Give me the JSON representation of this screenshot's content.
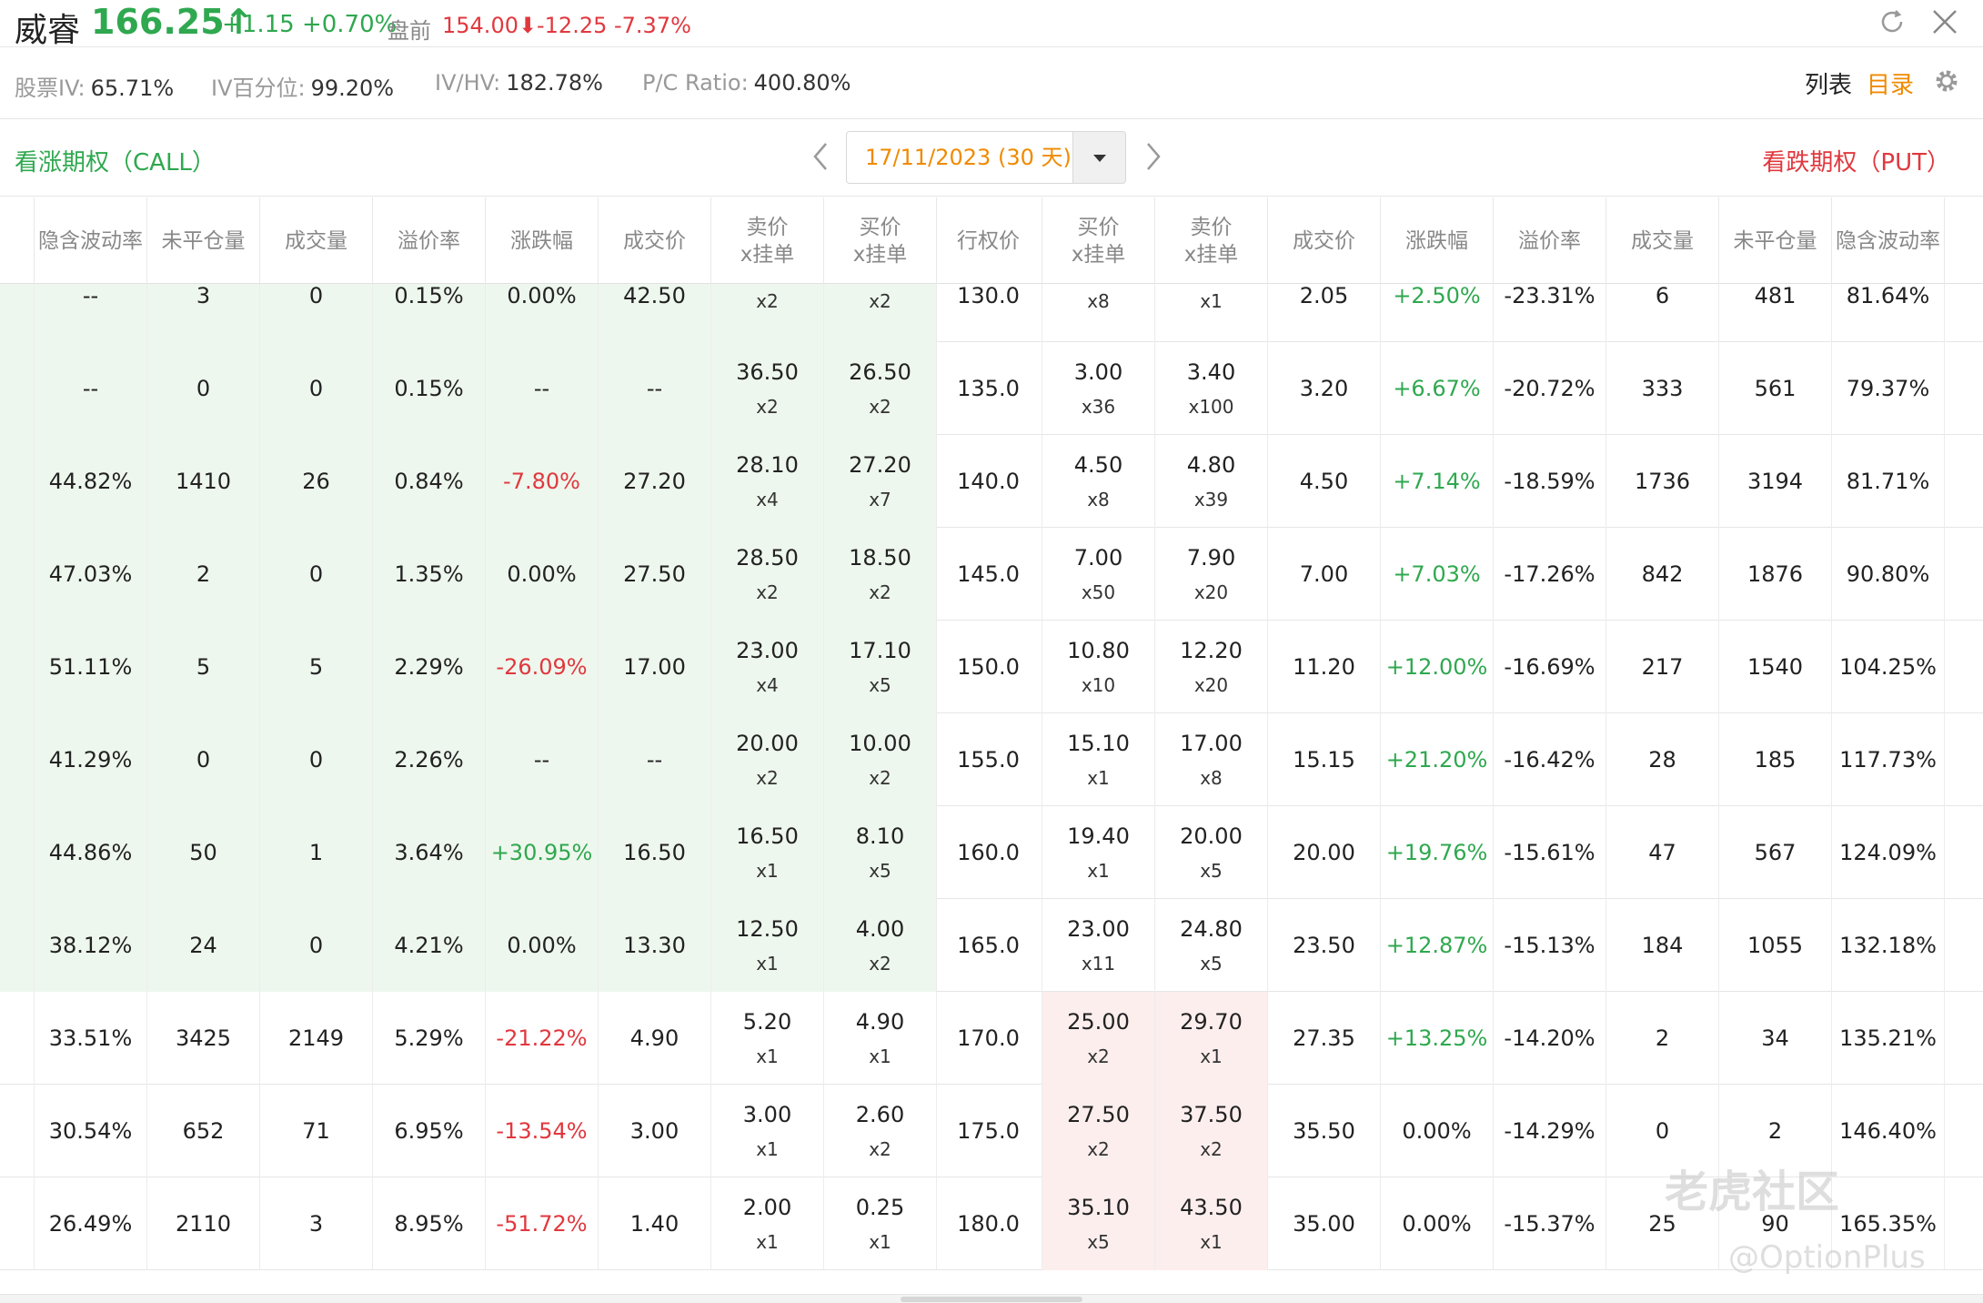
{
  "header": {
    "name": "威睿",
    "price": "166.25↑",
    "change": "+1.15 +0.70%",
    "premarket_label": "盘前",
    "premarket_price": "154.00⬇",
    "premarket_change": "-12.25 -7.37%"
  },
  "stats": [
    {
      "label": "股票IV:",
      "value": "65.71%"
    },
    {
      "label": "IV百分位:",
      "value": "99.20%"
    },
    {
      "label": "IV/HV:",
      "value": "182.78%"
    },
    {
      "label": "P/C Ratio:",
      "value": "400.80%"
    }
  ],
  "toolbar": {
    "list_label": "列表",
    "menu_label": "目录"
  },
  "expiry": {
    "call_label": "看涨期权（CALL）",
    "put_label": "看跌期权（PUT）",
    "date": "17/11/2023 (30 天)"
  },
  "columns": [
    "隐含波动率",
    "未平仓量",
    "成交量",
    "溢价率",
    "涨跌幅",
    "成交价",
    "卖价\nx挂单",
    "买价\nx挂单",
    "行权价",
    "买价\nx挂单",
    "卖价\nx挂单",
    "成交价",
    "涨跌幅",
    "溢价率",
    "成交量",
    "未平仓量",
    "隐含波动率"
  ],
  "rows": [
    [
      "--",
      "3",
      "0",
      "0.15%",
      "0.00%",
      "42.50",
      "",
      "x2",
      "",
      "x2",
      "130.0",
      "",
      "x8",
      "",
      "x1",
      "2.05",
      "+2.50%",
      "-23.31%",
      "6",
      "481",
      "81.64%"
    ],
    [
      "--",
      "0",
      "0",
      "0.15%",
      "--",
      "--",
      "36.50",
      "x2",
      "26.50",
      "x2",
      "135.0",
      "3.00",
      "x36",
      "3.40",
      "x100",
      "3.20",
      "+6.67%",
      "-20.72%",
      "333",
      "561",
      "79.37%"
    ],
    [
      "44.82%",
      "1410",
      "26",
      "0.84%",
      "-7.80%",
      "27.20",
      "28.10",
      "x4",
      "27.20",
      "x7",
      "140.0",
      "4.50",
      "x8",
      "4.80",
      "x39",
      "4.50",
      "+7.14%",
      "-18.59%",
      "1736",
      "3194",
      "81.71%"
    ],
    [
      "47.03%",
      "2",
      "0",
      "1.35%",
      "0.00%",
      "27.50",
      "28.50",
      "x2",
      "18.50",
      "x2",
      "145.0",
      "7.00",
      "x50",
      "7.90",
      "x20",
      "7.00",
      "+7.03%",
      "-17.26%",
      "842",
      "1876",
      "90.80%"
    ],
    [
      "51.11%",
      "5",
      "5",
      "2.29%",
      "-26.09%",
      "17.00",
      "23.00",
      "x4",
      "17.10",
      "x5",
      "150.0",
      "10.80",
      "x10",
      "12.20",
      "x20",
      "11.20",
      "+12.00%",
      "-16.69%",
      "217",
      "1540",
      "104.25%"
    ],
    [
      "41.29%",
      "0",
      "0",
      "2.26%",
      "--",
      "--",
      "20.00",
      "x2",
      "10.00",
      "x2",
      "155.0",
      "15.10",
      "x1",
      "17.00",
      "x8",
      "15.15",
      "+21.20%",
      "-16.42%",
      "28",
      "185",
      "117.73%"
    ],
    [
      "44.86%",
      "50",
      "1",
      "3.64%",
      "+30.95%",
      "16.50",
      "16.50",
      "x1",
      "8.10",
      "x5",
      "160.0",
      "19.40",
      "x1",
      "20.00",
      "x5",
      "20.00",
      "+19.76%",
      "-15.61%",
      "47",
      "567",
      "124.09%"
    ],
    [
      "38.12%",
      "24",
      "0",
      "4.21%",
      "0.00%",
      "13.30",
      "12.50",
      "x1",
      "4.00",
      "x2",
      "165.0",
      "23.00",
      "x11",
      "24.80",
      "x5",
      "23.50",
      "+12.87%",
      "-15.13%",
      "184",
      "1055",
      "132.18%"
    ],
    [
      "33.51%",
      "3425",
      "2149",
      "5.29%",
      "-21.22%",
      "4.90",
      "5.20",
      "x1",
      "4.90",
      "x1",
      "170.0",
      "25.00",
      "x2",
      "29.70",
      "x1",
      "27.35",
      "+13.25%",
      "-14.20%",
      "2",
      "34",
      "135.21%"
    ],
    [
      "30.54%",
      "652",
      "71",
      "6.95%",
      "-13.54%",
      "3.00",
      "3.00",
      "x1",
      "2.60",
      "x2",
      "175.0",
      "27.50",
      "x2",
      "37.50",
      "x2",
      "35.50",
      "0.00%",
      "-14.29%",
      "0",
      "2",
      "146.40%"
    ],
    [
      "26.49%",
      "2110",
      "3",
      "8.95%",
      "-51.72%",
      "1.40",
      "2.00",
      "x1",
      "0.25",
      "x1",
      "180.0",
      "35.10",
      "x5",
      "43.50",
      "x1",
      "35.00",
      "0.00%",
      "-15.37%",
      "25",
      "90",
      "165.35%"
    ]
  ],
  "watermark": {
    "text": "老虎社区",
    "sub": "@OptionPlus"
  },
  "colors": {
    "up": "#2fa84f",
    "down": "#e0383e",
    "accent": "#f08a00",
    "call_itm_bg": "#eef7ee",
    "put_itm_bg": "#fdeeee"
  }
}
